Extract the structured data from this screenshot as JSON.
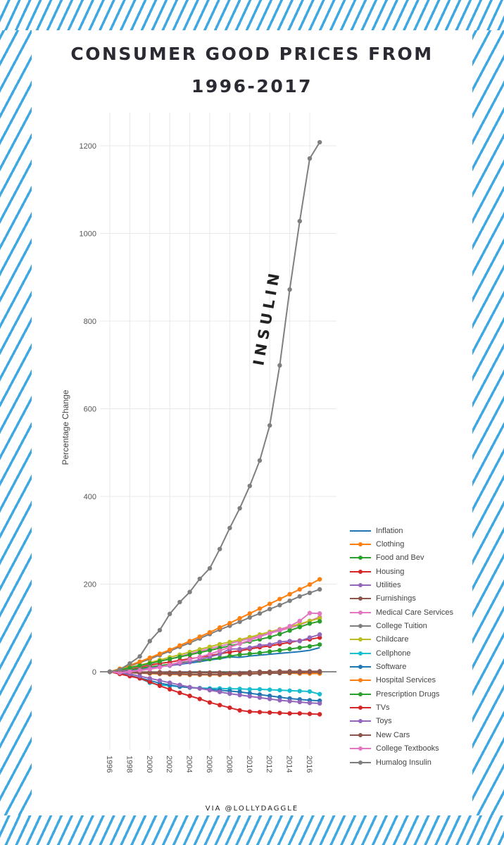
{
  "title_line1": "CONSUMER GOOD PRICES FROM",
  "title_line2": "1996-2017",
  "credit": "VIA @LOLLYDAGGLE",
  "annotation": "INSULIN",
  "chart_data": {
    "type": "line",
    "title": "CONSUMER GOOD PRICES FROM 1996-2017",
    "xlabel": "",
    "ylabel": "Percentage Change",
    "x": [
      1996,
      1997,
      1998,
      1999,
      2000,
      2001,
      2002,
      2003,
      2004,
      2005,
      2006,
      2007,
      2008,
      2009,
      2010,
      2011,
      2012,
      2013,
      2014,
      2015,
      2016,
      2017
    ],
    "xticks": [
      "1996",
      "1998",
      "2000",
      "2002",
      "2004",
      "2006",
      "2008",
      "2010",
      "2012",
      "2014",
      "2016"
    ],
    "yticks": [
      "0",
      "200",
      "400",
      "600",
      "800",
      "1000",
      "1200"
    ],
    "ylim": [
      -160,
      1270
    ],
    "grid": true,
    "legend_placement": "bottom-right",
    "series": [
      {
        "name": "Inflation",
        "color": "#1f77b4",
        "markers": false,
        "values": [
          0,
          2,
          4,
          6,
          9,
          12,
          14,
          17,
          20,
          23,
          27,
          30,
          34,
          33,
          36,
          38,
          40,
          42,
          44,
          46,
          49,
          55
        ]
      },
      {
        "name": "Clothing",
        "color": "#ff7f0e",
        "markers": true,
        "values": [
          0,
          -1,
          -2,
          -3,
          -4,
          -5,
          -6,
          -6,
          -7,
          -7,
          -7,
          -7,
          -6,
          -6,
          -5,
          -3,
          -3,
          -3,
          -3,
          -4,
          -4,
          -4
        ]
      },
      {
        "name": "Food and Bev",
        "color": "#2ca02c",
        "markers": true,
        "values": [
          0,
          2,
          5,
          8,
          11,
          14,
          17,
          20,
          23,
          26,
          29,
          32,
          36,
          39,
          41,
          43,
          46,
          49,
          52,
          55,
          58,
          62
        ]
      },
      {
        "name": "Housing",
        "color": "#d62728",
        "markers": true,
        "values": [
          0,
          4,
          7,
          11,
          15,
          19,
          22,
          26,
          30,
          33,
          37,
          41,
          45,
          48,
          52,
          56,
          59,
          63,
          67,
          71,
          74,
          78
        ]
      },
      {
        "name": "Utilities",
        "color": "#9467bd",
        "markers": true,
        "values": [
          0,
          1,
          2,
          4,
          8,
          12,
          14,
          18,
          22,
          28,
          34,
          40,
          52,
          52,
          55,
          60,
          62,
          68,
          70,
          70,
          78,
          85
        ]
      },
      {
        "name": "Furnishings",
        "color": "#8c564b",
        "markers": true,
        "values": [
          0,
          -1,
          -2,
          -3,
          -3,
          -4,
          -5,
          -5,
          -6,
          -6,
          -6,
          -6,
          -5,
          -5,
          -5,
          -4,
          -3,
          -3,
          -2,
          -2,
          -1,
          -1
        ]
      },
      {
        "name": "Medical Care Services",
        "color": "#e377c2",
        "markers": true,
        "values": [
          0,
          4,
          8,
          13,
          18,
          24,
          29,
          35,
          41,
          47,
          53,
          58,
          64,
          70,
          76,
          82,
          88,
          94,
          100,
          107,
          116,
          125
        ]
      },
      {
        "name": "College Tuition",
        "color": "#7f7f7f",
        "markers": true,
        "values": [
          0,
          6,
          13,
          21,
          29,
          38,
          47,
          57,
          66,
          76,
          86,
          96,
          105,
          114,
          124,
          133,
          143,
          152,
          162,
          172,
          180,
          188
        ]
      },
      {
        "name": "Childcare",
        "color": "#bcbd22",
        "markers": true,
        "values": [
          0,
          5,
          10,
          15,
          21,
          27,
          33,
          39,
          45,
          51,
          57,
          63,
          68,
          73,
          79,
          85,
          91,
          97,
          103,
          109,
          116,
          122
        ]
      },
      {
        "name": "Cellphone",
        "color": "#17becf",
        "markers": true,
        "values": [
          0,
          -3,
          -8,
          -15,
          -25,
          -30,
          -32,
          -34,
          -36,
          -37,
          -38,
          -38,
          -39,
          -39,
          -40,
          -40,
          -41,
          -42,
          -43,
          -44,
          -45,
          -51
        ]
      },
      {
        "name": "Software",
        "color": "#1f77b4",
        "markers": true,
        "values": [
          0,
          -4,
          -9,
          -14,
          -20,
          -26,
          -30,
          -34,
          -36,
          -38,
          -40,
          -42,
          -44,
          -46,
          -49,
          -52,
          -55,
          -58,
          -61,
          -63,
          -65,
          -66
        ]
      },
      {
        "name": "Hospital Services",
        "color": "#ff7f0e",
        "markers": true,
        "values": [
          0,
          7,
          15,
          23,
          32,
          41,
          50,
          60,
          70,
          80,
          90,
          101,
          111,
          122,
          133,
          144,
          155,
          166,
          177,
          188,
          199,
          211
        ]
      },
      {
        "name": "Prescription Drugs",
        "color": "#2ca02c",
        "markers": true,
        "values": [
          0,
          4,
          9,
          14,
          19,
          24,
          29,
          34,
          39,
          44,
          49,
          54,
          59,
          64,
          69,
          74,
          79,
          86,
          94,
          102,
          110,
          115
        ]
      },
      {
        "name": "TVs",
        "color": "#d62728",
        "markers": true,
        "values": [
          0,
          -5,
          -10,
          -15,
          -23,
          -32,
          -40,
          -48,
          -55,
          -62,
          -70,
          -76,
          -82,
          -88,
          -91,
          -92,
          -93,
          -94,
          -95,
          -95,
          -96,
          -97
        ]
      },
      {
        "name": "Toys",
        "color": "#9467bd",
        "markers": true,
        "values": [
          0,
          -2,
          -5,
          -10,
          -15,
          -20,
          -25,
          -30,
          -35,
          -38,
          -42,
          -46,
          -50,
          -53,
          -56,
          -59,
          -62,
          -65,
          -67,
          -69,
          -71,
          -72
        ]
      },
      {
        "name": "New Cars",
        "color": "#8c564b",
        "markers": true,
        "values": [
          0,
          0,
          -1,
          -1,
          -1,
          -1,
          -2,
          -2,
          -2,
          -2,
          -2,
          -2,
          -3,
          -3,
          -1,
          0,
          0,
          1,
          1,
          1,
          1,
          1
        ]
      },
      {
        "name": "College Textbooks",
        "color": "#e377c2",
        "markers": true,
        "values": [
          0,
          -2,
          0,
          3,
          6,
          10,
          16,
          22,
          28,
          34,
          40,
          48,
          56,
          64,
          72,
          80,
          88,
          96,
          104,
          116,
          134,
          133
        ]
      },
      {
        "name": "Humalog Insulin",
        "color": "#7f7f7f",
        "markers": true,
        "values": [
          0,
          5,
          19,
          35,
          70,
          95,
          132,
          159,
          182,
          212,
          236,
          280,
          328,
          373,
          424,
          482,
          562,
          699,
          872,
          1028,
          1171,
          1208
        ]
      }
    ]
  }
}
